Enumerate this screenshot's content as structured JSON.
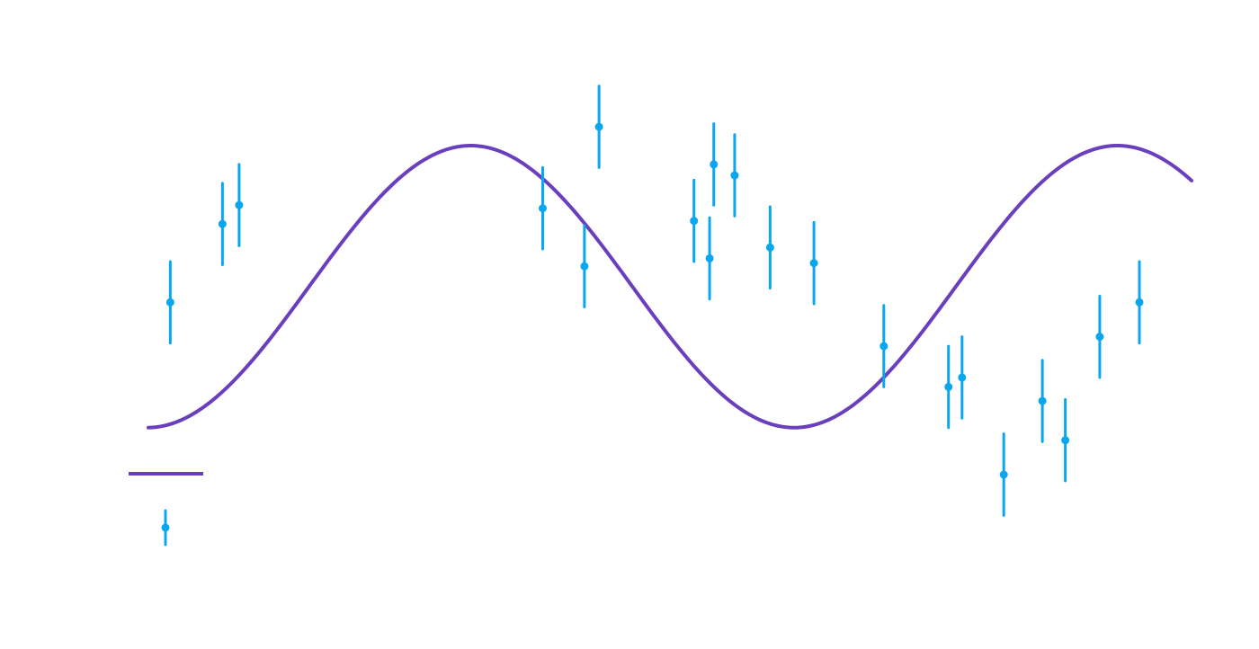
{
  "chart_data": {
    "type": "scatter",
    "title": "",
    "xlabel": "",
    "ylabel": "",
    "xlim": [
      0,
      100
    ],
    "ylim": [
      -2,
      1.5
    ],
    "grid": false,
    "legend_position": "lower-left",
    "colors": {
      "model": "#6a3fbe",
      "data": "#0aa6ee"
    },
    "series": [
      {
        "kind": "line",
        "function": "sine",
        "amplitude": 0.9,
        "period": 62,
        "phase_x": 15.4,
        "offset": -0.1,
        "x_start": 0,
        "x_end": 100
      },
      {
        "kind": "errorbar",
        "points": [
          {
            "x": 2.1,
            "y": -0.2,
            "err": 0.26
          },
          {
            "x": 7.1,
            "y": 0.3,
            "err": 0.26
          },
          {
            "x": 8.7,
            "y": 0.42,
            "err": 0.26
          },
          {
            "x": 37.8,
            "y": 0.4,
            "err": 0.26
          },
          {
            "x": 41.8,
            "y": 0.03,
            "err": 0.26
          },
          {
            "x": 43.2,
            "y": 0.92,
            "err": 0.26
          },
          {
            "x": 52.3,
            "y": 0.32,
            "err": 0.26
          },
          {
            "x": 53.8,
            "y": 0.08,
            "err": 0.26
          },
          {
            "x": 54.2,
            "y": 0.68,
            "err": 0.26
          },
          {
            "x": 56.2,
            "y": 0.61,
            "err": 0.26
          },
          {
            "x": 59.6,
            "y": 0.15,
            "err": 0.26
          },
          {
            "x": 63.8,
            "y": 0.05,
            "err": 0.26
          },
          {
            "x": 70.5,
            "y": -0.48,
            "err": 0.26
          },
          {
            "x": 76.7,
            "y": -0.74,
            "err": 0.26
          },
          {
            "x": 78.0,
            "y": -0.68,
            "err": 0.26
          },
          {
            "x": 82.0,
            "y": -1.3,
            "err": 0.26
          },
          {
            "x": 85.7,
            "y": -0.83,
            "err": 0.26
          },
          {
            "x": 87.9,
            "y": -1.08,
            "err": 0.26
          },
          {
            "x": 91.2,
            "y": -0.42,
            "err": 0.26
          },
          {
            "x": 95.0,
            "y": -0.2,
            "err": 0.26
          }
        ]
      }
    ]
  }
}
